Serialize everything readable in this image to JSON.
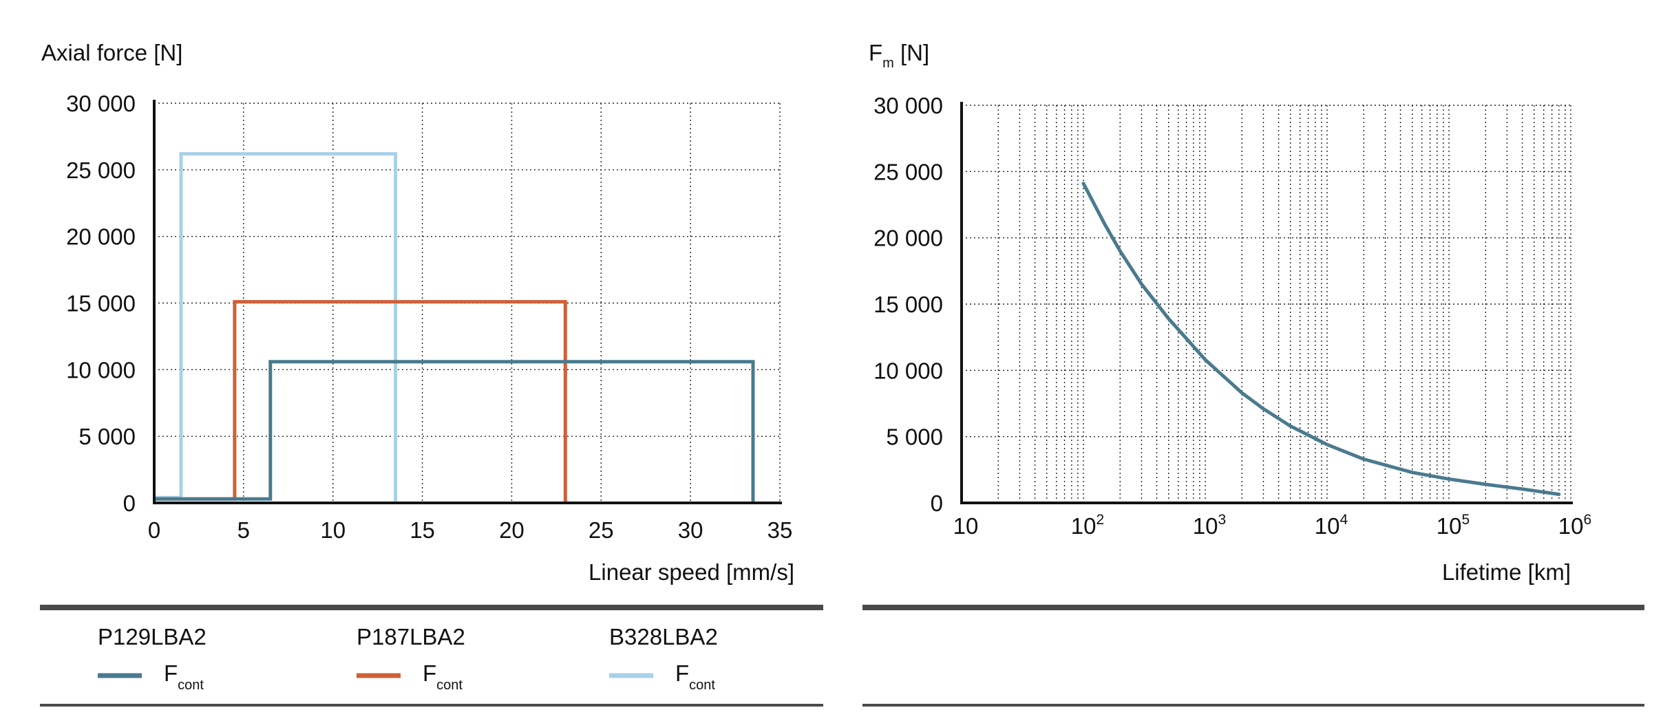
{
  "chart_data": [
    {
      "type": "line",
      "title": "",
      "ylabel": "Axial force [N]",
      "xlabel": "Linear speed [mm/s]",
      "xlim": [
        0,
        35
      ],
      "ylim": [
        0,
        30000
      ],
      "x_ticks": [
        0,
        5,
        10,
        15,
        20,
        25,
        30,
        35
      ],
      "x_tick_labels": [
        "0",
        "5",
        "10",
        "15",
        "20",
        "25",
        "30",
        "35"
      ],
      "y_ticks": [
        0,
        5000,
        10000,
        15000,
        20000,
        25000,
        30000
      ],
      "y_tick_labels": [
        "0",
        "5 000",
        "10 000",
        "15 000",
        "20 000",
        "25 000",
        "30 000"
      ],
      "grid": true,
      "series": [
        {
          "name": "P129LBA2",
          "label": "F",
          "label_sub": "cont",
          "color": "#4a7a8f",
          "x": [
            0,
            6.5,
            6.5,
            33.5,
            33.5
          ],
          "y": [
            300,
            300,
            10600,
            10600,
            0
          ]
        },
        {
          "name": "P187LBA2",
          "label": "F",
          "label_sub": "cont",
          "color": "#cf6038",
          "x": [
            0,
            4.5,
            4.5,
            23,
            23
          ],
          "y": [
            300,
            300,
            15100,
            15100,
            0
          ]
        },
        {
          "name": "B328LBA2",
          "label": "F",
          "label_sub": "cont",
          "color": "#a8d1e8",
          "x": [
            0,
            1.5,
            1.5,
            13.5,
            13.5
          ],
          "y": [
            400,
            400,
            26200,
            26200,
            0
          ]
        }
      ]
    },
    {
      "type": "line",
      "title": "",
      "ylabel": "F",
      "ylabel_sub": "m",
      "ylabel_suffix": "[N]",
      "xlabel": "Lifetime [km]",
      "xscale": "log",
      "xlim": [
        10,
        1000000
      ],
      "ylim": [
        0,
        30000
      ],
      "x_tick_labels": [
        {
          "base": "10",
          "exp": ""
        },
        {
          "base": "10",
          "exp": "2"
        },
        {
          "base": "10",
          "exp": "3"
        },
        {
          "base": "10",
          "exp": "4"
        },
        {
          "base": "10",
          "exp": "5"
        },
        {
          "base": "10",
          "exp": "6"
        }
      ],
      "y_ticks": [
        0,
        5000,
        10000,
        15000,
        20000,
        25000,
        30000
      ],
      "y_tick_labels": [
        "0",
        "5 000",
        "10 000",
        "15 000",
        "20 000",
        "25 000",
        "30 000"
      ],
      "grid": true,
      "series": [
        {
          "name": "P129LBA2",
          "color": "#4a7a8f",
          "x": [
            100,
            150,
            200,
            300,
            500,
            700,
            1000,
            2000,
            3000,
            5000,
            10000,
            20000,
            50000,
            100000,
            200000,
            400000,
            800000
          ],
          "y": [
            24100,
            21000,
            19000,
            16500,
            13900,
            12400,
            10800,
            8300,
            7100,
            5800,
            4400,
            3300,
            2300,
            1800,
            1400,
            1050,
            650
          ]
        }
      ]
    }
  ]
}
